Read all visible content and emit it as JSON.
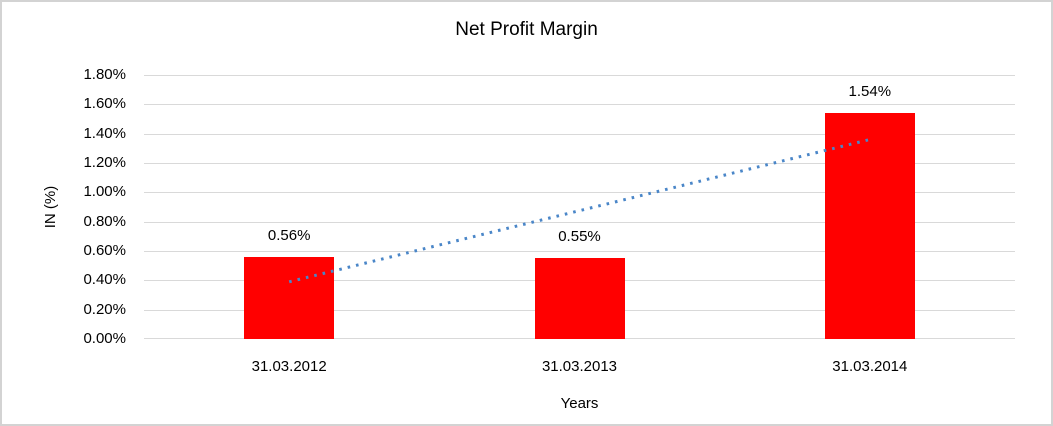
{
  "chart_data": {
    "type": "bar",
    "title": "Net Profit Margin",
    "categories": [
      "31.03.2012",
      "31.03.2013",
      "31.03.2014"
    ],
    "values": [
      0.56,
      0.55,
      1.54
    ],
    "data_labels": [
      "0.56%",
      "0.55%",
      "1.54%"
    ],
    "xlabel": "Years",
    "ylabel": "IN (%)",
    "ylim": [
      0,
      1.8
    ],
    "ytick_step": 0.2,
    "ytick_labels": [
      "0.00%",
      "0.20%",
      "0.40%",
      "0.60%",
      "0.80%",
      "1.00%",
      "1.20%",
      "1.40%",
      "1.60%",
      "1.80%"
    ],
    "grid": true,
    "legend": "none",
    "bar_color": "#ff0000",
    "gridline_color": "#d9d9d9",
    "frame_border_color": "#d3d3d3",
    "trendline": {
      "type": "linear",
      "style": "dotted",
      "color": "#4a86c8",
      "start_value": 0.39,
      "end_value": 1.36
    }
  }
}
